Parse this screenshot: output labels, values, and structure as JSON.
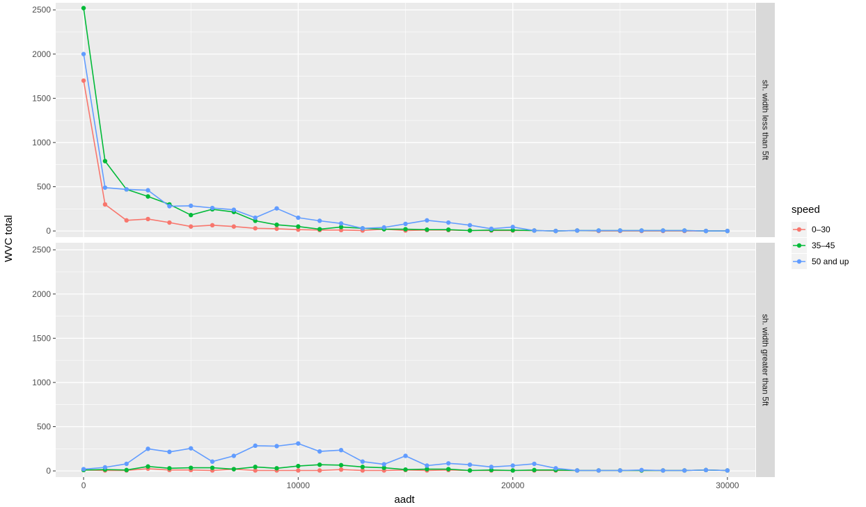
{
  "chart_data": {
    "type": "line",
    "xlabel": "aadt",
    "ylabel": "WVC total",
    "xlim": [
      -1300,
      31300
    ],
    "ylim": [
      -70,
      2580
    ],
    "x_ticks": [
      0,
      10000,
      20000,
      30000
    ],
    "x_tick_labels": [
      "0",
      "10000",
      "20000",
      "30000"
    ],
    "y_ticks": [
      0,
      500,
      1000,
      1500,
      2000,
      2500
    ],
    "y_tick_labels": [
      "0",
      "500",
      "1000",
      "1500",
      "2000",
      "2500"
    ],
    "grid": true,
    "legend": {
      "title": "speed",
      "placement": "right",
      "entries": [
        "0–30",
        "35–45",
        "50 and up"
      ]
    },
    "colors": {
      "0–30": "#F8766D",
      "35–45": "#00BA38",
      "50 and up": "#619CFF",
      "panel_bg": "#EBEBEB",
      "strip_bg": "#D9D9D9",
      "grid": "#FFFFFF"
    },
    "x": [
      0,
      1000,
      2000,
      3000,
      4000,
      5000,
      6000,
      7000,
      8000,
      9000,
      10000,
      11000,
      12000,
      13000,
      14000,
      15000,
      16000,
      17000,
      18000,
      19000,
      20000,
      21000,
      22000,
      23000,
      24000,
      25000,
      26000,
      27000,
      28000,
      29000,
      30000
    ],
    "facets": [
      {
        "label": "sh. width less than 5ft",
        "series": [
          {
            "name": "0–30",
            "values": [
              1700,
              300,
              120,
              135,
              95,
              50,
              65,
              50,
              30,
              25,
              15,
              10,
              10,
              5,
              20,
              5,
              10,
              10,
              5,
              5,
              5,
              5,
              0,
              5,
              0,
              0,
              0,
              0,
              0,
              0,
              0
            ]
          },
          {
            "name": "35–45",
            "values": [
              2520,
              790,
              470,
              390,
              300,
              180,
              245,
              215,
              115,
              70,
              50,
              20,
              45,
              30,
              20,
              20,
              15,
              15,
              5,
              10,
              10,
              5,
              0,
              5,
              5,
              5,
              5,
              5,
              5,
              0,
              0
            ]
          },
          {
            "name": "50 and up",
            "values": [
              2000,
              490,
              470,
              460,
              280,
              285,
              260,
              240,
              150,
              255,
              150,
              115,
              85,
              30,
              40,
              80,
              120,
              95,
              65,
              25,
              45,
              5,
              0,
              5,
              5,
              5,
              5,
              5,
              5,
              0,
              0
            ]
          }
        ]
      },
      {
        "label": "sh. width greater than 5ft",
        "series": [
          {
            "name": "0–30",
            "values": [
              10,
              5,
              5,
              25,
              10,
              10,
              5,
              20,
              5,
              5,
              5,
              5,
              15,
              5,
              5,
              10,
              5,
              10,
              5,
              5,
              5,
              5,
              5,
              5,
              5,
              5,
              5,
              5,
              5,
              10,
              5
            ]
          },
          {
            "name": "35–45",
            "values": [
              10,
              15,
              10,
              50,
              30,
              35,
              35,
              20,
              45,
              30,
              55,
              70,
              65,
              45,
              35,
              15,
              20,
              20,
              5,
              10,
              5,
              10,
              10,
              5,
              5,
              5,
              5,
              5,
              5,
              10,
              5
            ]
          },
          {
            "name": "50 and up",
            "values": [
              20,
              40,
              80,
              250,
              215,
              255,
              105,
              170,
              285,
              280,
              310,
              220,
              235,
              105,
              75,
              170,
              60,
              85,
              70,
              45,
              60,
              80,
              30,
              5,
              5,
              5,
              10,
              5,
              5,
              10,
              5
            ]
          }
        ]
      }
    ]
  }
}
